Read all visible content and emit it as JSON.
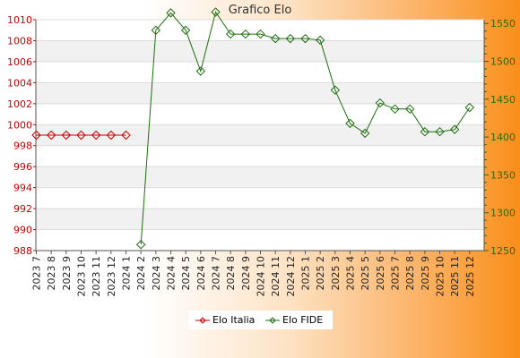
{
  "chart_data": {
    "type": "line",
    "title": "Grafico Elo",
    "categories": [
      "2023 7",
      "2023 8",
      "2023 9",
      "2023 10",
      "2023 11",
      "2023 12",
      "2024 1",
      "2024 2",
      "2024 3",
      "2024 4",
      "2024 5",
      "2024 6",
      "2024 7",
      "2024 8",
      "2024 9",
      "2024 10",
      "2024 11",
      "2024 12",
      "2025 1",
      "2025 2",
      "2025 3",
      "2025 4",
      "2025 5",
      "2025 6",
      "2025 7",
      "2025 8",
      "2025 9",
      "2025 10",
      "2025 11",
      "2025 12"
    ],
    "left_axis": {
      "ylim": [
        988,
        1010
      ],
      "ticks": [
        988,
        990,
        992,
        994,
        996,
        998,
        1000,
        1002,
        1004,
        1006,
        1008,
        1010
      ],
      "color": "#cc0000"
    },
    "right_axis": {
      "ylim": [
        1250,
        1555
      ],
      "ticks": [
        1250,
        1300,
        1350,
        1400,
        1450,
        1500,
        1550
      ],
      "color": "#336600"
    },
    "series": [
      {
        "name": "Elo Italia",
        "axis": "left",
        "color": "#cc0000",
        "marker": "diamond",
        "values": [
          999,
          999,
          999,
          999,
          999,
          999,
          999,
          null,
          null,
          null,
          null,
          null,
          null,
          null,
          null,
          null,
          null,
          null,
          null,
          null,
          null,
          null,
          null,
          null,
          null,
          null,
          null,
          null,
          null,
          null
        ]
      },
      {
        "name": "Elo FIDE",
        "axis": "right",
        "color": "#1f6e0f",
        "marker": "diamond",
        "values": [
          null,
          null,
          null,
          null,
          null,
          null,
          null,
          1258,
          1541,
          1564,
          1541,
          1487,
          1565,
          1536,
          1536,
          1536,
          1530,
          1530,
          1530,
          1528,
          1462,
          1418,
          1405,
          1445,
          1437,
          1437,
          1407,
          1407,
          1410,
          1439
        ]
      }
    ],
    "grid": true,
    "legend": "bottom-center"
  }
}
